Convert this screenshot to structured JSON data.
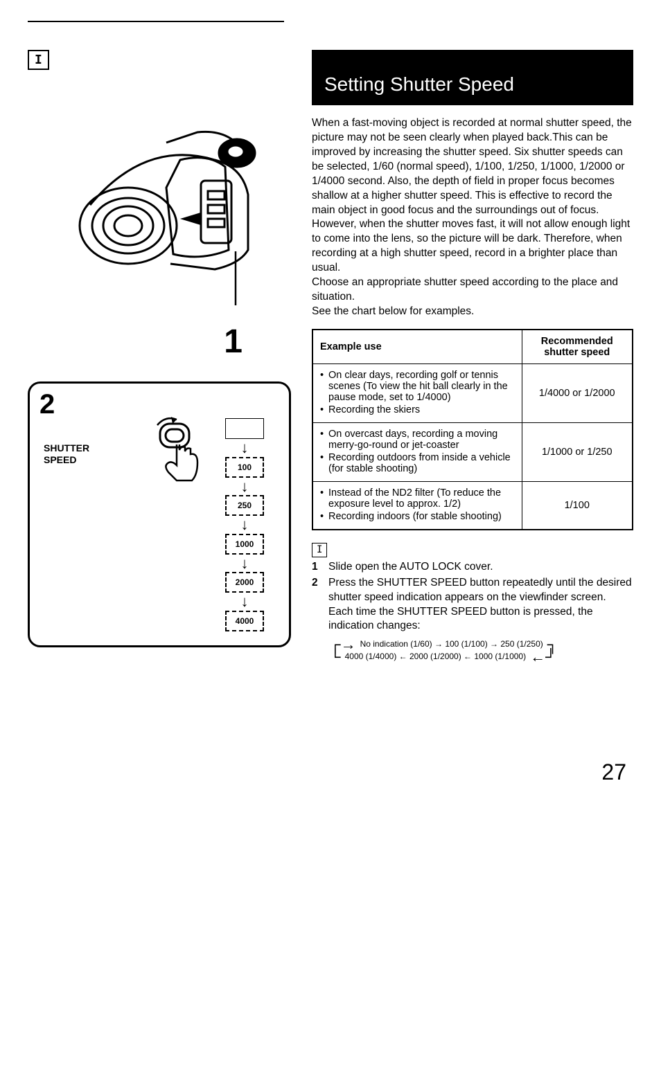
{
  "section_badge": "I",
  "header_title": "Setting Shutter Speed",
  "intro": "When a fast-moving object is recorded at normal shutter speed, the picture may not be seen clearly when played back.This can be improved by increasing the shutter speed. Six shutter speeds can be selected, 1/60 (normal speed), 1/100, 1/250, 1/1000, 1/2000 or 1/4000 second. Also, the depth of field in proper focus becomes shallow at a higher shutter speed. This is effective to record the main object in good focus and the surroundings out of focus.\nHowever, when the shutter moves fast, it will not allow enough light to come into the lens, so the picture will be dark. Therefore, when recording at a high shutter speed, record in a brighter place than usual.\nChoose an appropriate shutter speed according to the place and situation.\nSee the chart below for examples.",
  "table": {
    "col1_header": "Example use",
    "col2_header": "Recommended shutter speed",
    "rows": [
      {
        "uses": [
          "On clear days, recording golf or tennis scenes (To view the hit ball clearly in the pause mode, set to 1/4000)",
          "Recording the skiers"
        ],
        "speed": "1/4000 or 1/2000"
      },
      {
        "uses": [
          "On overcast days, recording a moving merry-go-round or jet-coaster",
          "Recording outdoors from inside a vehicle (for stable shooting)"
        ],
        "speed": "1/1000 or 1/250"
      },
      {
        "uses": [
          "Instead of the ND2 filter (To reduce the exposure level to approx. 1/2)",
          "Recording indoors (for stable shooting)"
        ],
        "speed": "1/100"
      }
    ]
  },
  "steps_badge": "I",
  "steps": [
    {
      "n": "1",
      "text": "Slide open the AUTO LOCK cover."
    },
    {
      "n": "2",
      "text": "Press the SHUTTER SPEED button repeatedly until the desired shutter speed indication appears on the viewfinder screen. Each time the SHUTTER SPEED button is pressed, the indication changes:"
    }
  ],
  "cycle": {
    "line1": "No indication (1/60) → 100 (1/100) → 250 (1/250)",
    "line2": "4000 (1/4000) ← 2000 (1/2000) ← 1000 (1/1000)"
  },
  "left": {
    "callout_1": "1",
    "panel_num": "2",
    "panel_label_line1": "SHUTTER",
    "panel_label_line2": "SPEED",
    "speed_values": [
      "",
      "100",
      "250",
      "1000",
      "2000",
      "4000"
    ]
  },
  "page_number": "27"
}
